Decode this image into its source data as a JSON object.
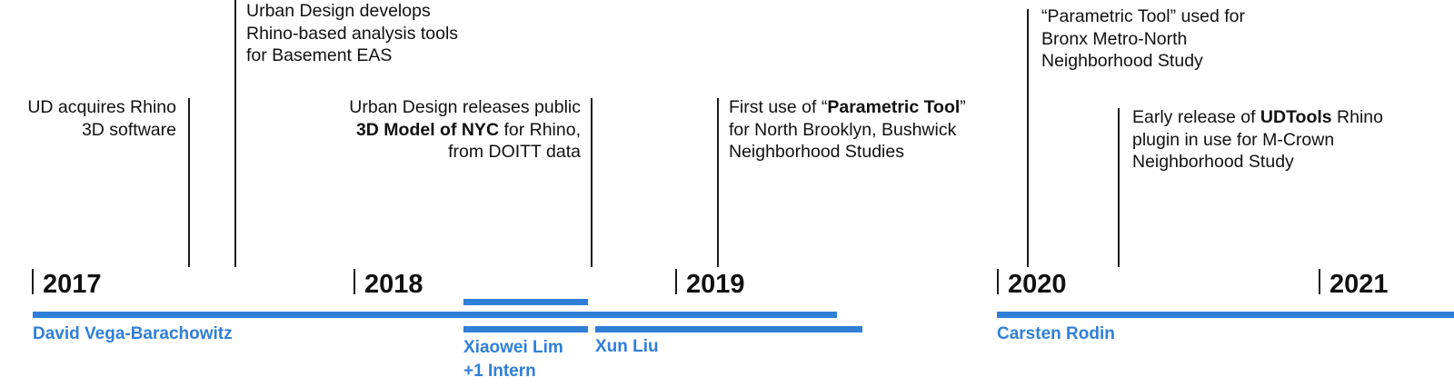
{
  "colors": {
    "accent": "#2f7fd8",
    "text": "#111111",
    "line": "#1a1a1a"
  },
  "years": [
    "2017",
    "2018",
    "2019",
    "2020",
    "2021"
  ],
  "events": [
    {
      "lines": [
        [
          "UD acquires Rhino"
        ],
        [
          "3D software"
        ]
      ]
    },
    {
      "lines": [
        [
          "Urban Design develops"
        ],
        [
          "Rhino-based analysis tools"
        ],
        [
          "for Basement EAS"
        ]
      ]
    },
    {
      "lines": [
        [
          "Urban Design releases public"
        ],
        [
          "**3D Model of NYC",
          " for Rhino,"
        ],
        [
          "from DOITT data"
        ]
      ]
    },
    {
      "lines": [
        [
          "First use of “",
          "**Parametric Tool",
          "”"
        ],
        [
          "for North Brooklyn, Bushwick"
        ],
        [
          "Neighborhood Studies"
        ]
      ]
    },
    {
      "lines": [
        [
          "“Parametric Tool” used for"
        ],
        [
          "Bronx Metro-North"
        ],
        [
          "Neighborhood Study"
        ]
      ]
    },
    {
      "lines": [
        [
          "Early release of ",
          "**UDTools",
          " Rhino"
        ],
        [
          "plugin in use for M-Crown"
        ],
        [
          "Neighborhood Study"
        ]
      ]
    }
  ],
  "people": [
    {
      "lines": [
        "David Vega-Barachowitz"
      ]
    },
    {
      "lines": [
        "Xiaowei Lim",
        "+1 Intern"
      ]
    },
    {
      "lines": [
        "Xun Liu"
      ]
    },
    {
      "lines": [
        "Carsten Rodin"
      ]
    }
  ]
}
